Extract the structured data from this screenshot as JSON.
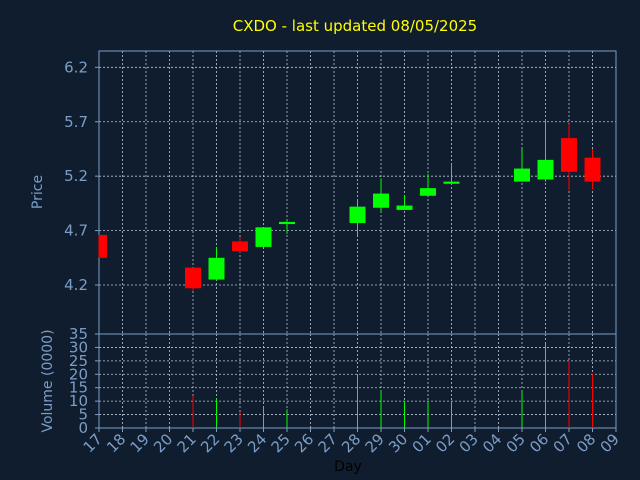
{
  "chart_data": {
    "type": "candlestick",
    "title": "CXDO - last updated 08/05/2025",
    "xlabel": "Day",
    "price_panel": {
      "ylabel": "Price",
      "ylim": [
        3.75,
        6.35
      ],
      "yticks": [
        "6.2",
        "5.7",
        "5.2",
        "4.7",
        "4.2"
      ],
      "grid": true
    },
    "volume_panel": {
      "ylabel": "Volume (0000)",
      "ylim": [
        0,
        35
      ],
      "yticks": [
        "35",
        "30",
        "25",
        "20",
        "15",
        "10",
        "5",
        "0"
      ],
      "grid": true
    },
    "x_labels": [
      "17",
      "18",
      "19",
      "20",
      "21",
      "22",
      "23",
      "24",
      "25",
      "26",
      "27",
      "28",
      "29",
      "30",
      "01",
      "02",
      "03",
      "04",
      "05",
      "06",
      "07",
      "08",
      "09"
    ],
    "candles": [
      {
        "x": 0,
        "open": 4.66,
        "close": 4.45,
        "high": 4.66,
        "low": 4.45
      },
      {
        "x": 4,
        "open": 4.36,
        "close": 4.17,
        "high": 4.36,
        "low": 4.15
      },
      {
        "x": 5,
        "open": 4.25,
        "close": 4.45,
        "high": 4.55,
        "low": 4.24
      },
      {
        "x": 6,
        "open": 4.6,
        "close": 4.51,
        "high": 4.64,
        "low": 4.5
      },
      {
        "x": 7,
        "open": 4.55,
        "close": 4.73,
        "high": 4.73,
        "low": 4.55
      },
      {
        "x": 8,
        "open": 4.76,
        "close": 4.78,
        "high": 4.8,
        "low": 4.67
      },
      {
        "x": 11,
        "open": 4.77,
        "close": 4.92,
        "high": 4.99,
        "low": 4.66
      },
      {
        "x": 12,
        "open": 4.91,
        "close": 5.04,
        "high": 5.18,
        "low": 4.87
      },
      {
        "x": 13,
        "open": 4.89,
        "close": 4.93,
        "high": 5.02,
        "low": 4.89
      },
      {
        "x": 14,
        "open": 5.02,
        "close": 5.09,
        "high": 5.22,
        "low": 5.02
      },
      {
        "x": 15,
        "open": 5.13,
        "close": 5.15,
        "high": 5.3,
        "low": 5.12
      },
      {
        "x": 18,
        "open": 5.15,
        "close": 5.27,
        "high": 5.45,
        "low": 5.15
      },
      {
        "x": 19,
        "open": 5.17,
        "close": 5.35,
        "high": 5.72,
        "low": 5.15
      },
      {
        "x": 20,
        "open": 5.55,
        "close": 5.24,
        "high": 5.68,
        "low": 5.07
      },
      {
        "x": 21,
        "open": 5.37,
        "close": 5.15,
        "high": 5.45,
        "low": 5.08
      }
    ],
    "volume": [
      {
        "x": 4,
        "value": 12,
        "up": false
      },
      {
        "x": 5,
        "value": 11,
        "up": true
      },
      {
        "x": 6,
        "value": 6,
        "up": false
      },
      {
        "x": 7,
        "value": 8,
        "up": true
      },
      {
        "x": 8,
        "value": 7,
        "up": true
      },
      {
        "x": 11,
        "value": 20,
        "up": true
      },
      {
        "x": 12,
        "value": 14,
        "up": true
      },
      {
        "x": 13,
        "value": 10,
        "up": true
      },
      {
        "x": 14,
        "value": 10,
        "up": true
      },
      {
        "x": 15,
        "value": 10,
        "up": true
      },
      {
        "x": 18,
        "value": 14,
        "up": true
      },
      {
        "x": 19,
        "value": 32,
        "up": true
      },
      {
        "x": 20,
        "value": 25,
        "up": false
      },
      {
        "x": 21,
        "value": 20,
        "up": false
      }
    ],
    "colors": {
      "background": "#0f1d2e",
      "title": "#ffff00",
      "axis_text": "#7b9ec7",
      "xlabel": "#000000",
      "frame": "#7b9ec7",
      "grid": "#b8c8d8",
      "up": "#00ff00",
      "down": "#ff0000"
    }
  }
}
